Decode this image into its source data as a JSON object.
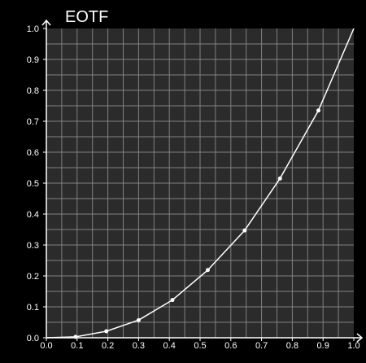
{
  "chart_data": {
    "type": "line",
    "title": "EOTF",
    "xlabel": "",
    "ylabel": "",
    "xlim": [
      0.0,
      1.0
    ],
    "ylim": [
      0.0,
      1.0
    ],
    "x_ticks": [
      "0.0",
      "0.1",
      "0.2",
      "0.3",
      "0.4",
      "0.5",
      "0.6",
      "0.7",
      "0.8",
      "0.9",
      "1.0"
    ],
    "y_ticks": [
      "0.0",
      "0.1",
      "0.2",
      "0.3",
      "0.4",
      "0.5",
      "0.6",
      "0.7",
      "0.8",
      "0.9",
      "1.0"
    ],
    "grid": true,
    "legend": "none",
    "series": [
      {
        "points": [
          [
            0.0,
            0.0
          ],
          [
            0.095,
            0.003
          ],
          [
            0.195,
            0.021
          ],
          [
            0.3,
            0.057
          ],
          [
            0.41,
            0.122
          ],
          [
            0.525,
            0.219
          ],
          [
            0.645,
            0.347
          ],
          [
            0.76,
            0.515
          ],
          [
            0.885,
            0.735
          ],
          [
            1.0,
            1.0
          ]
        ],
        "markers": [
          [
            0.095,
            0.003
          ],
          [
            0.195,
            0.021
          ],
          [
            0.3,
            0.057
          ],
          [
            0.41,
            0.122
          ],
          [
            0.525,
            0.219
          ],
          [
            0.645,
            0.347
          ],
          [
            0.76,
            0.515
          ],
          [
            0.885,
            0.735
          ]
        ]
      }
    ],
    "colors": {
      "background": "#000000",
      "plot_background": "#2b2b2b",
      "grid": "#8a8a8a",
      "axis": "#ffffff",
      "line": "#ffffff",
      "marker": "#ffffff"
    }
  }
}
